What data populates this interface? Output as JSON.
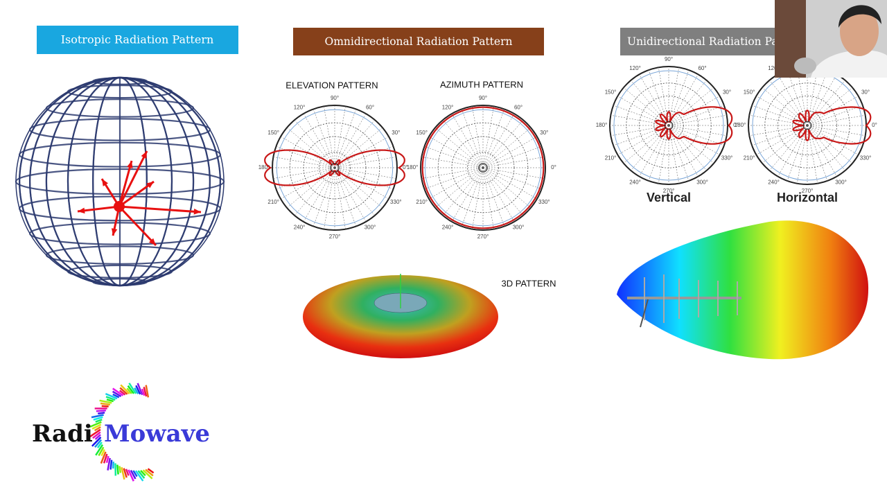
{
  "isotropic": {
    "title": "Isotropic Radiation Pattern"
  },
  "omnidirectional": {
    "title": "Omnidirectional Radiation Pattern",
    "elevation_title": "ELEVATION PATTERN",
    "azimuth_title": "AZIMUTH PATTERN",
    "pattern_3d_label": "3D PATTERN"
  },
  "unidirectional": {
    "title": "Unidirectional Radiation Pattern",
    "vertical_label": "Vertical",
    "horizontal_label": "Horizontal"
  },
  "polar_angle_labels": [
    "0°",
    "30°",
    "60°",
    "90°",
    "120°",
    "150°",
    "180°",
    "210°",
    "240°",
    "270°",
    "300°",
    "330°"
  ],
  "logo": {
    "part1": "Radi",
    "part2": "Mowave"
  }
}
